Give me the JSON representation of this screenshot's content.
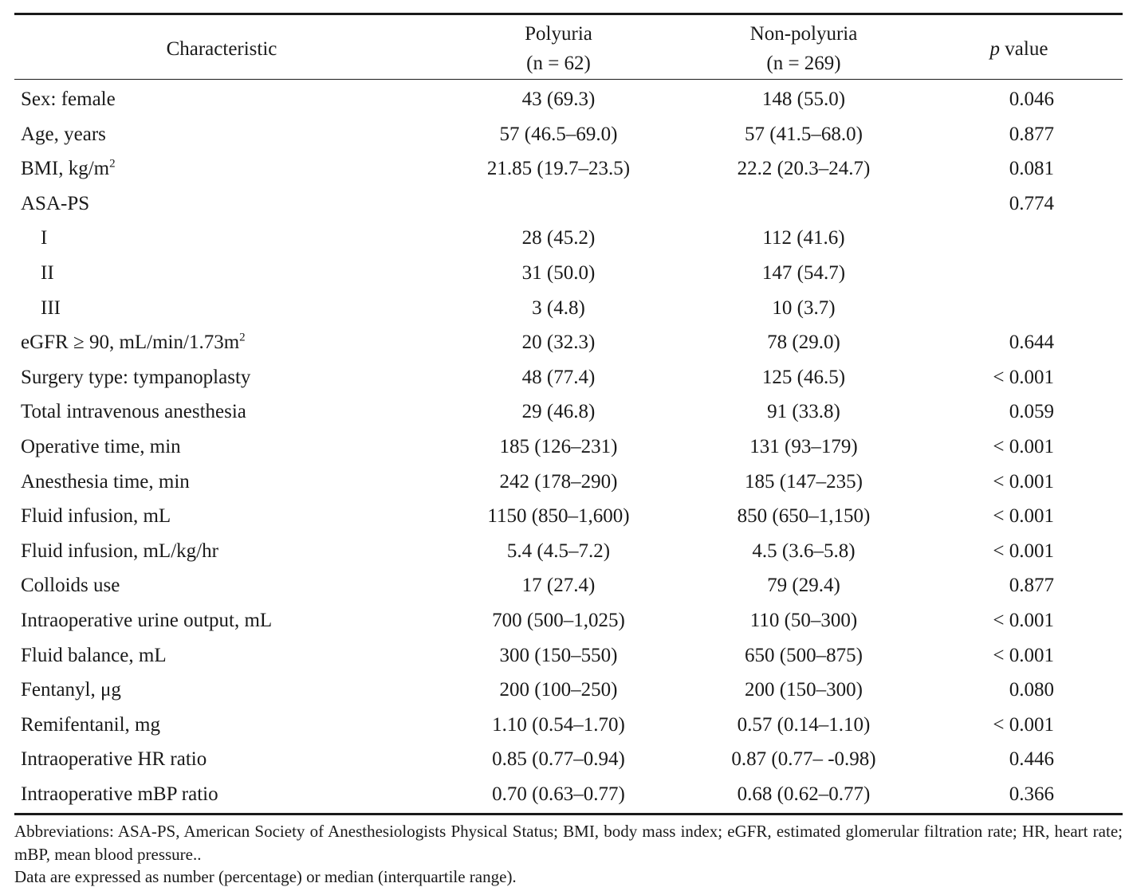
{
  "table": {
    "headers": {
      "characteristic": "Characteristic",
      "polyuria_label": "Polyuria",
      "polyuria_n": "(n = 62)",
      "nonpolyuria_label": "Non-polyuria",
      "nonpolyuria_n": "(n = 269)",
      "p_symbol": "p",
      "p_suffix": " value"
    },
    "rows": [
      {
        "label": "Sex: female",
        "sup": "",
        "polyuria": "43 (69.3)",
        "nonpolyuria": "148 (55.0)",
        "p": "0.046"
      },
      {
        "label": "Age, years",
        "sup": "",
        "polyuria": "57 (46.5–69.0)",
        "nonpolyuria": "57 (41.5–68.0)",
        "p": "0.877"
      },
      {
        "label": "BMI, kg/m",
        "sup": "2",
        "polyuria": "21.85 (19.7–23.5)",
        "nonpolyuria": "22.2 (20.3–24.7)",
        "p": "0.081"
      },
      {
        "label": "ASA-PS",
        "sup": "",
        "polyuria": "",
        "nonpolyuria": "",
        "p": "0.774"
      },
      {
        "label": "I",
        "sup": "",
        "polyuria": "28 (45.2)",
        "nonpolyuria": "112 (41.6)",
        "p": ""
      },
      {
        "label": "II",
        "sup": "",
        "polyuria": "31 (50.0)",
        "nonpolyuria": "147 (54.7)",
        "p": ""
      },
      {
        "label": "III",
        "sup": "",
        "polyuria": "3 (4.8)",
        "nonpolyuria": "10 (3.7)",
        "p": ""
      },
      {
        "label": "eGFR ≥ 90, mL/min/1.73m",
        "sup": "2",
        "polyuria": "20 (32.3)",
        "nonpolyuria": "78 (29.0)",
        "p": "0.644"
      },
      {
        "label": "Surgery type: tympanoplasty",
        "sup": "",
        "polyuria": "48 (77.4)",
        "nonpolyuria": "125 (46.5)",
        "p": "< 0.001"
      },
      {
        "label": "Total intravenous anesthesia",
        "sup": "",
        "polyuria": "29 (46.8)",
        "nonpolyuria": "91 (33.8)",
        "p": "0.059"
      },
      {
        "label": "Operative time, min",
        "sup": "",
        "polyuria": "185 (126–231)",
        "nonpolyuria": "131 (93–179)",
        "p": "< 0.001"
      },
      {
        "label": "Anesthesia time, min",
        "sup": "",
        "polyuria": "242 (178–290)",
        "nonpolyuria": "185 (147–235)",
        "p": "< 0.001"
      },
      {
        "label": "Fluid infusion, mL",
        "sup": "",
        "polyuria": "1150 (850–1,600)",
        "nonpolyuria": "850 (650–1,150)",
        "p": "< 0.001"
      },
      {
        "label": "Fluid infusion, mL/kg/hr",
        "sup": "",
        "polyuria": "5.4 (4.5–7.2)",
        "nonpolyuria": "4.5 (3.6–5.8)",
        "p": "< 0.001"
      },
      {
        "label": "Colloids use",
        "sup": "",
        "polyuria": "17 (27.4)",
        "nonpolyuria": "79 (29.4)",
        "p": "0.877"
      },
      {
        "label": "Intraoperative urine output, mL",
        "sup": "",
        "polyuria": "700 (500–1,025)",
        "nonpolyuria": "110 (50–300)",
        "p": "< 0.001"
      },
      {
        "label": "Fluid balance, mL",
        "sup": "",
        "polyuria": "300 (150–550)",
        "nonpolyuria": "650 (500–875)",
        "p": "< 0.001"
      },
      {
        "label": "Fentanyl, μg",
        "sup": "",
        "polyuria": "200 (100–250)",
        "nonpolyuria": "200 (150–300)",
        "p": "0.080"
      },
      {
        "label": "Remifentanil, mg",
        "sup": "",
        "polyuria": "1.10 (0.54–1.70)",
        "nonpolyuria": "0.57 (0.14–1.10)",
        "p": "< 0.001"
      },
      {
        "label": "Intraoperative HR ratio",
        "sup": "",
        "polyuria": "0.85 (0.77–0.94)",
        "nonpolyuria": "0.87 (0.77– -0.98)",
        "p": "0.446"
      },
      {
        "label": "Intraoperative mBP ratio",
        "sup": "",
        "polyuria": "0.70 (0.63–0.77)",
        "nonpolyuria": "0.68 (0.62–0.77)",
        "p": "0.366"
      }
    ],
    "sub_row_indices": [
      4,
      5,
      6
    ]
  },
  "notes": {
    "abbreviations": "Abbreviations: ASA-PS, American Society of Anesthesiologists Physical Status; BMI, body mass index; eGFR, estimated glomerular filtration rate; HR, heart rate; mBP, mean blood pressure..",
    "data_expression": "Data are expressed as number (percentage) or median (interquartile range)."
  }
}
